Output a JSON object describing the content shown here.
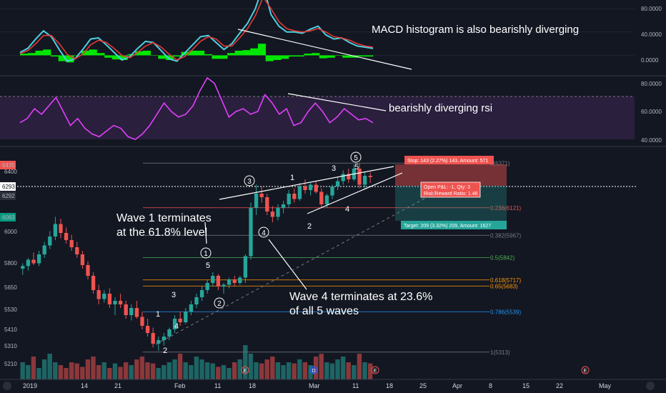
{
  "colors": {
    "background": "#131722",
    "up": "#26a69a",
    "down": "#ef5350",
    "macd_line": "#4dd0e1",
    "signal_line": "#e53935",
    "histogram": "#00e600",
    "rsi": "#e040fb",
    "rsi_band": "#2a1f3d",
    "fib_gray": "#787b86",
    "fib_orange": "#ff9800",
    "fib_green": "#4caf50",
    "fib_teal": "#26a69a",
    "fib_blue": "#2196f3",
    "text": "#ffffff",
    "axis_text": "#b2b5be"
  },
  "chart_data": [
    {
      "type": "line",
      "panel": "MACD",
      "yticks": [
        "80.0000",
        "40.0000",
        "0.0000"
      ],
      "ylim": [
        -35,
        95
      ],
      "annotation": "MACD histogram is also bearishly diverging",
      "series": [
        {
          "values": [
            5,
            12,
            28,
            42,
            32,
            10,
            -10,
            -6,
            10,
            28,
            30,
            18,
            5,
            -8,
            -2,
            12,
            24,
            22,
            8,
            -6,
            -10,
            4,
            18,
            32,
            34,
            22,
            10,
            20,
            38,
            55,
            80,
            120,
            70,
            50,
            40,
            40,
            38,
            45,
            50,
            35,
            28,
            30,
            22,
            16,
            14,
            12
          ]
        },
        {
          "values": [
            3,
            8,
            20,
            34,
            34,
            20,
            2,
            -6,
            2,
            18,
            26,
            22,
            12,
            0,
            -4,
            5,
            16,
            22,
            14,
            2,
            -8,
            -2,
            10,
            24,
            32,
            28,
            16,
            16,
            30,
            46,
            68,
            100,
            80,
            58,
            46,
            42,
            40,
            42,
            46,
            40,
            32,
            30,
            26,
            20,
            16,
            14
          ]
        }
      ],
      "histogram": [
        3,
        4,
        8,
        10,
        -2,
        -10,
        -12,
        0,
        8,
        10,
        4,
        -4,
        -7,
        -8,
        2,
        7,
        8,
        0,
        -6,
        -8,
        -2,
        6,
        8,
        8,
        2,
        -6,
        -6,
        4,
        8,
        9,
        12,
        20,
        -10,
        -8,
        -6,
        -2,
        -2,
        3,
        4,
        -5,
        -4,
        0,
        -4,
        -4,
        -2,
        -2
      ]
    },
    {
      "type": "line",
      "panel": "RSI",
      "yticks": [
        "80.0000",
        "60.0000",
        "40.0000"
      ],
      "ylim": [
        35,
        85
      ],
      "levels": [
        70,
        30
      ],
      "annotation": "bearishly diverging rsi",
      "values": [
        52,
        55,
        62,
        58,
        64,
        70,
        60,
        50,
        55,
        48,
        44,
        42,
        46,
        50,
        48,
        42,
        40,
        44,
        50,
        58,
        66,
        60,
        56,
        58,
        64,
        75,
        84,
        80,
        68,
        56,
        60,
        62,
        58,
        60,
        72,
        66,
        58,
        62,
        50,
        52,
        60,
        66,
        60,
        52,
        56,
        62,
        58,
        54,
        55,
        52
      ]
    },
    {
      "type": "candlestick",
      "panel": "price",
      "yticks": [
        "6435",
        "6400",
        "6293",
        "6292",
        "6083",
        "6000",
        "5800",
        "5650",
        "5530",
        "5410",
        "5310",
        "5210"
      ],
      "ylim": [
        5160,
        6460
      ],
      "xticks": [
        "2019",
        "14",
        "21",
        "Feb",
        "11",
        "18",
        "Mar",
        "11",
        "18",
        "25",
        "Apr",
        "8",
        "15",
        "22",
        "May"
      ],
      "price_labels": [
        {
          "text": "6435",
          "kind": "red"
        },
        {
          "text": "6293",
          "kind": "white"
        },
        {
          "text": "6292",
          "kind": "dark"
        },
        {
          "text": "6083",
          "kind": "green"
        }
      ],
      "candles": [
        [
          5780,
          5810,
          5745,
          5795
        ],
        [
          5795,
          5840,
          5770,
          5830
        ],
        [
          5830,
          5870,
          5800,
          5810
        ],
        [
          5810,
          5880,
          5795,
          5860
        ],
        [
          5860,
          5930,
          5840,
          5910
        ],
        [
          5910,
          5990,
          5890,
          5960
        ],
        [
          5960,
          6070,
          5940,
          6030
        ],
        [
          6030,
          6060,
          5950,
          5980
        ],
        [
          5980,
          6010,
          5920,
          5940
        ],
        [
          5940,
          5970,
          5880,
          5900
        ],
        [
          5900,
          5930,
          5840,
          5860
        ],
        [
          5860,
          5880,
          5780,
          5800
        ],
        [
          5800,
          5820,
          5720,
          5740
        ],
        [
          5740,
          5760,
          5640,
          5660
        ],
        [
          5660,
          5690,
          5580,
          5610
        ],
        [
          5610,
          5660,
          5590,
          5640
        ],
        [
          5640,
          5670,
          5560,
          5580
        ],
        [
          5580,
          5620,
          5520,
          5600
        ],
        [
          5600,
          5640,
          5560,
          5580
        ],
        [
          5580,
          5600,
          5500,
          5520
        ],
        [
          5520,
          5580,
          5490,
          5560
        ],
        [
          5560,
          5600,
          5500,
          5510
        ],
        [
          5510,
          5540,
          5440,
          5460
        ],
        [
          5460,
          5500,
          5400,
          5420
        ],
        [
          5420,
          5450,
          5340,
          5360
        ],
        [
          5360,
          5400,
          5320,
          5380
        ],
        [
          5380,
          5420,
          5350,
          5400
        ],
        [
          5400,
          5450,
          5380,
          5440
        ],
        [
          5440,
          5520,
          5420,
          5500
        ],
        [
          5500,
          5540,
          5460,
          5480
        ],
        [
          5480,
          5560,
          5470,
          5540
        ],
        [
          5540,
          5600,
          5520,
          5580
        ],
        [
          5580,
          5640,
          5560,
          5620
        ],
        [
          5620,
          5680,
          5600,
          5660
        ],
        [
          5660,
          5720,
          5640,
          5700
        ],
        [
          5700,
          5760,
          5680,
          5740
        ],
        [
          5740,
          5750,
          5660,
          5680
        ],
        [
          5680,
          5700,
          5640,
          5690
        ],
        [
          5690,
          5730,
          5670,
          5720
        ],
        [
          5720,
          5740,
          5680,
          5700
        ],
        [
          5700,
          5740,
          5690,
          5730
        ],
        [
          5730,
          5860,
          5700,
          5850
        ],
        [
          5850,
          6150,
          5830,
          6120
        ],
        [
          6120,
          6250,
          6080,
          6200
        ],
        [
          6200,
          6240,
          6150,
          6180
        ],
        [
          6180,
          6200,
          6080,
          6100
        ],
        [
          6100,
          6130,
          6040,
          6070
        ],
        [
          6070,
          6140,
          6050,
          6120
        ],
        [
          6120,
          6160,
          6090,
          6140
        ],
        [
          6140,
          6220,
          6120,
          6200
        ],
        [
          6200,
          6230,
          6150,
          6170
        ],
        [
          6170,
          6260,
          6160,
          6240
        ],
        [
          6240,
          6280,
          6200,
          6220
        ],
        [
          6220,
          6260,
          6190,
          6250
        ],
        [
          6250,
          6270,
          6200,
          6210
        ],
        [
          6210,
          6230,
          6120,
          6140
        ],
        [
          6140,
          6200,
          6120,
          6190
        ],
        [
          6190,
          6250,
          6170,
          6240
        ],
        [
          6240,
          6290,
          6220,
          6270
        ],
        [
          6270,
          6330,
          6250,
          6310
        ],
        [
          6310,
          6340,
          6260,
          6280
        ],
        [
          6280,
          6360,
          6270,
          6340
        ],
        [
          6340,
          6370,
          6230,
          6250
        ],
        [
          6250,
          6320,
          6230,
          6300
        ],
        [
          6300,
          6320,
          6260,
          6293
        ]
      ],
      "volume": [
        30,
        25,
        40,
        20,
        35,
        45,
        30,
        25,
        20,
        30,
        28,
        22,
        35,
        40,
        25,
        30,
        20,
        28,
        22,
        30,
        25,
        35,
        40,
        30,
        28,
        20,
        25,
        30,
        35,
        45,
        30,
        25,
        40,
        35,
        30,
        28,
        22,
        25,
        20,
        30,
        35,
        60,
        45,
        30,
        28,
        35,
        40,
        30,
        25,
        30,
        28,
        35,
        30,
        25,
        40,
        45,
        30,
        28,
        35,
        40,
        30,
        25,
        45,
        30,
        28
      ],
      "fib_levels": [
        {
          "label": "0(6371)",
          "value": 6371,
          "color": "#787b86"
        },
        {
          "label": "0.236(6121)",
          "value": 6121,
          "color": "#ef5350"
        },
        {
          "label": "0.382(5967)",
          "value": 5967,
          "color": "#787b86"
        },
        {
          "label": "0.5(5842)",
          "value": 5842,
          "color": "#4caf50"
        },
        {
          "label": "0.618(5717)",
          "value": 5717,
          "color": "#ff9800"
        },
        {
          "label": "0.65(5683)",
          "value": 5683,
          "color": "#ff9800"
        },
        {
          "label": "0.786(5539)",
          "value": 5539,
          "color": "#2196f3"
        },
        {
          "label": "1(5313)",
          "value": 5313,
          "color": "#787b86"
        }
      ],
      "position_tool": {
        "stop": "Stop: 143 (2.27%) 143, Amount: 571",
        "target": "Target: 209 (3.32%) 209, Amount: 1627",
        "open_pl": "Open P&L: -1, Qty: 3",
        "risk_reward": "Risk/Reward Ratio: 1.46"
      },
      "annotations": {
        "wave1": [
          "Wave 1 terminates",
          "at the 61.8% level"
        ],
        "wave4": [
          "Wave 4 terminates at 23.6%",
          "of all 5 waves"
        ]
      },
      "wave_labels": {
        "minor": [
          "1",
          "2",
          "3",
          "4",
          "5",
          "1",
          "2",
          "3",
          "4",
          "5"
        ],
        "major": [
          "1",
          "2",
          "3",
          "4",
          "5"
        ]
      },
      "event_markers": [
        "E",
        "D",
        "E",
        "E"
      ]
    }
  ]
}
